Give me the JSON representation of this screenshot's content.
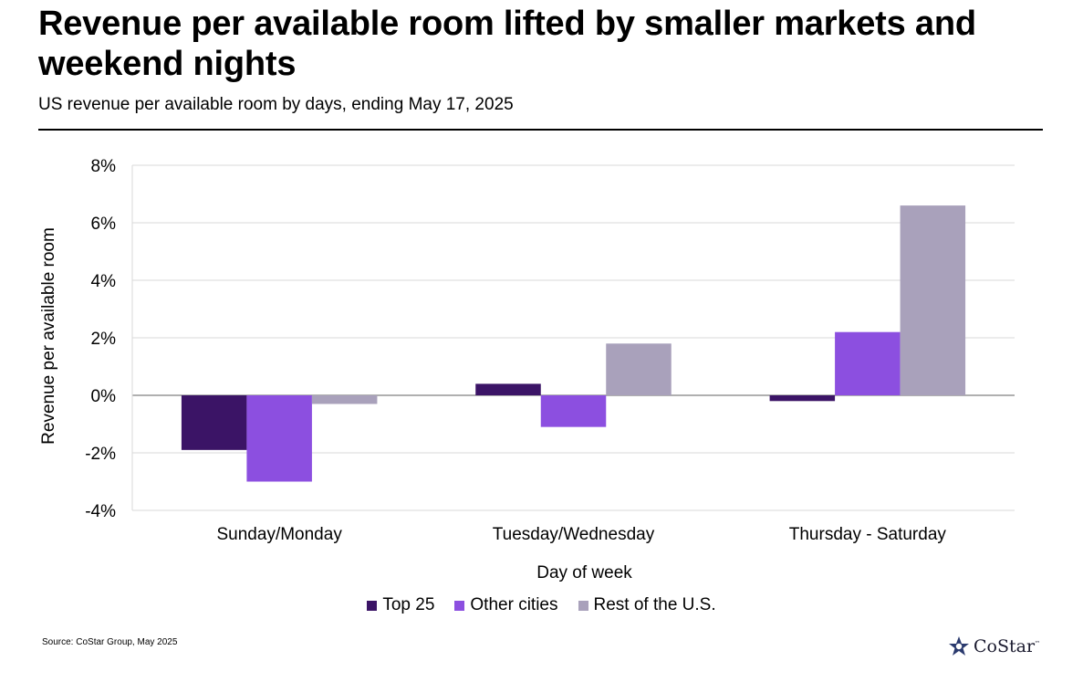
{
  "title": "Revenue per available room lifted by smaller markets and weekend nights",
  "subtitle": "US revenue per available room by days, ending May 17, 2025",
  "source": "Source: CoStar Group, May 2025",
  "logo": {
    "text": "CoStar",
    "tm": "™"
  },
  "colors": {
    "top25": "#3b1466",
    "other": "#8c4fe0",
    "rest": "#a9a1bb",
    "grid": "#d9d9d9",
    "axis": "#808080"
  },
  "chart_data": {
    "type": "bar",
    "categories": [
      "Sunday/Monday",
      "Tuesday/Wednesday",
      "Thursday - Saturday"
    ],
    "series": [
      {
        "name": "Top 25",
        "values": [
          -1.9,
          0.4,
          -0.2
        ]
      },
      {
        "name": "Other cities",
        "values": [
          -3.0,
          -1.1,
          2.2
        ]
      },
      {
        "name": "Rest of the U.S.",
        "values": [
          -0.3,
          1.8,
          6.6
        ]
      }
    ],
    "xlabel": "Day of week",
    "ylabel": "Revenue per available room",
    "ylim": [
      -4,
      8
    ],
    "yticks": [
      -4,
      -2,
      0,
      2,
      4,
      6,
      8
    ],
    "ytick_labels": [
      "-4%",
      "-2%",
      "0%",
      "2%",
      "4%",
      "6%",
      "8%"
    ],
    "grid": true,
    "legend": "bottom-center"
  }
}
